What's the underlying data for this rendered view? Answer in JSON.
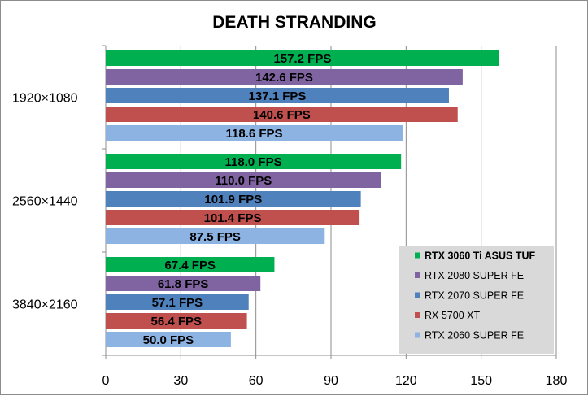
{
  "chart_data": {
    "type": "bar",
    "orientation": "horizontal",
    "title": "DEATH STRANDING",
    "xlabel": "",
    "ylabel": "",
    "xlim": [
      0,
      180
    ],
    "xticks": [
      "0",
      "30",
      "60",
      "90",
      "120",
      "150",
      "180"
    ],
    "grid": "vertical",
    "legend_position": "bottom-right",
    "categories": [
      "1920×1080",
      "2560×1440",
      "3840×2160"
    ],
    "value_suffix": " FPS",
    "series": [
      {
        "name": "RTX 3060 Ti ASUS TUF",
        "color": "#00b050",
        "bold": true,
        "values": [
          157.2,
          118.0,
          67.4
        ]
      },
      {
        "name": "RTX 2080 SUPER FE",
        "color": "#8064a2",
        "bold": false,
        "values": [
          142.6,
          110.0,
          61.8
        ]
      },
      {
        "name": "RTX 2070 SUPER FE",
        "color": "#4f81bd",
        "bold": false,
        "values": [
          137.1,
          101.9,
          57.1
        ]
      },
      {
        "name": "RX 5700 XT",
        "color": "#c0504d",
        "bold": false,
        "values": [
          140.6,
          101.4,
          56.4
        ]
      },
      {
        "name": "RTX 2060 SUPER FE",
        "color": "#8db3e2",
        "bold": false,
        "values": [
          118.6,
          87.5,
          50.0
        ]
      }
    ]
  }
}
